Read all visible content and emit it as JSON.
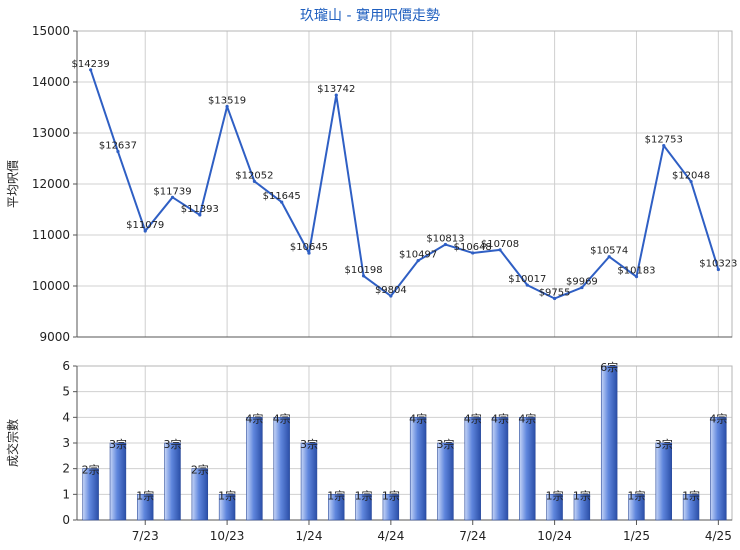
{
  "title": "玖瓏山 - 實用呎價走勢",
  "colors": {
    "title": "#1f5fbf",
    "line": "#2f5fc4",
    "bar_light": "#c7d6f7",
    "bar_mid": "#5f86dd",
    "bar_dark": "#2b4fa8",
    "grid": "#d0d0d0",
    "axis": "#555555",
    "text": "#222222"
  },
  "chart_data": [
    {
      "type": "line",
      "ylabel": "平均呎價",
      "ylim": [
        9000,
        15000
      ],
      "yticks": [
        9000,
        10000,
        11000,
        12000,
        13000,
        14000,
        15000
      ],
      "grid": true,
      "legend": "none",
      "values": [
        14239,
        12637,
        11079,
        11739,
        11393,
        13519,
        12052,
        11645,
        10645,
        13742,
        10198,
        9804,
        10497,
        10813,
        10648,
        10708,
        10017,
        9755,
        9969,
        10574,
        10183,
        12753,
        12048,
        10323
      ],
      "labels": [
        "$14239",
        "$12637",
        "$11079",
        "$11739",
        "$11393",
        "$13519",
        "$12052",
        "$11645",
        "$10645",
        "$13742",
        "$10198",
        "$9804",
        "$10497",
        "$10813",
        "$10648",
        "$10708",
        "$10017",
        "$9755",
        "$9969",
        "$10574",
        "$10183",
        "$12753",
        "$12048",
        "$10323"
      ]
    },
    {
      "type": "bar",
      "ylabel": "成交宗數",
      "ylim": [
        0,
        6
      ],
      "yticks": [
        0,
        1,
        2,
        3,
        4,
        5,
        6
      ],
      "grid": true,
      "legend": "none",
      "x_ticks": [
        {
          "index": 2,
          "label": "7/23"
        },
        {
          "index": 5,
          "label": "10/23"
        },
        {
          "index": 8,
          "label": "1/24"
        },
        {
          "index": 11,
          "label": "4/24"
        },
        {
          "index": 14,
          "label": "7/24"
        },
        {
          "index": 17,
          "label": "10/24"
        },
        {
          "index": 20,
          "label": "1/25"
        },
        {
          "index": 23,
          "label": "4/25"
        }
      ],
      "values": [
        2,
        3,
        1,
        3,
        2,
        1,
        4,
        4,
        3,
        1,
        1,
        1,
        4,
        3,
        4,
        4,
        4,
        1,
        1,
        6,
        1,
        3,
        1,
        4
      ],
      "labels": [
        "2宗",
        "3宗",
        "1宗",
        "3宗",
        "2宗",
        "1宗",
        "4宗",
        "4宗",
        "3宗",
        "1宗",
        "1宗",
        "1宗",
        "4宗",
        "3宗",
        "4宗",
        "4宗",
        "4宗",
        "1宗",
        "1宗",
        "6宗",
        "1宗",
        "3宗",
        "1宗",
        "4宗"
      ]
    }
  ]
}
